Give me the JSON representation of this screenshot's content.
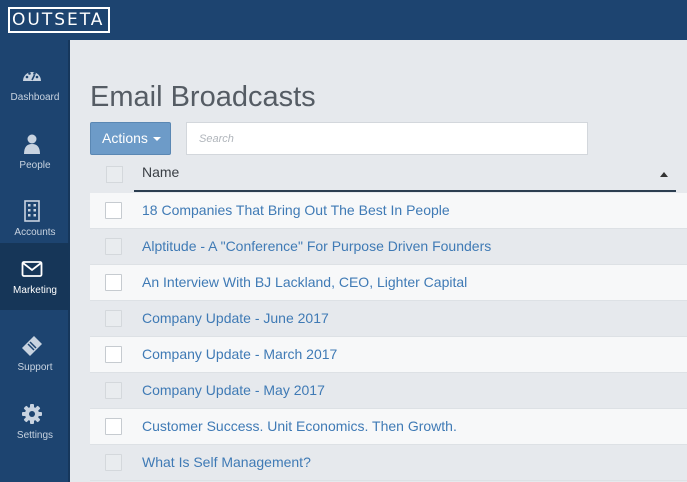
{
  "app": {
    "logo_text": "OUTSETA"
  },
  "sidebar": {
    "items": [
      {
        "label": "Dashboard",
        "icon": "dashboard-icon"
      },
      {
        "label": "People",
        "icon": "person-icon"
      },
      {
        "label": "Accounts",
        "icon": "building-icon"
      },
      {
        "label": "Marketing",
        "icon": "envelope-icon",
        "active": true
      },
      {
        "label": "Support",
        "icon": "ticket-icon"
      },
      {
        "label": "Settings",
        "icon": "gear-icon"
      }
    ]
  },
  "page": {
    "title": "Email Broadcasts"
  },
  "toolbar": {
    "actions_label": "Actions",
    "search_placeholder": "Search"
  },
  "table": {
    "columns": [
      "Name"
    ],
    "rows": [
      "18 Companies That Bring Out The Best In People",
      "Alptitude - A \"Conference\" For Purpose Driven Founders",
      "An Interview With BJ Lackland, CEO, Lighter Capital",
      "Company Update - June 2017",
      "Company Update - March 2017",
      "Company Update - May 2017",
      "Customer Success. Unit Economics. Then Growth.",
      "What Is Self Management?"
    ]
  },
  "colors": {
    "nav_bg": "#1d4470",
    "accent": "#6d9bc8",
    "link": "#3f7ab5"
  }
}
